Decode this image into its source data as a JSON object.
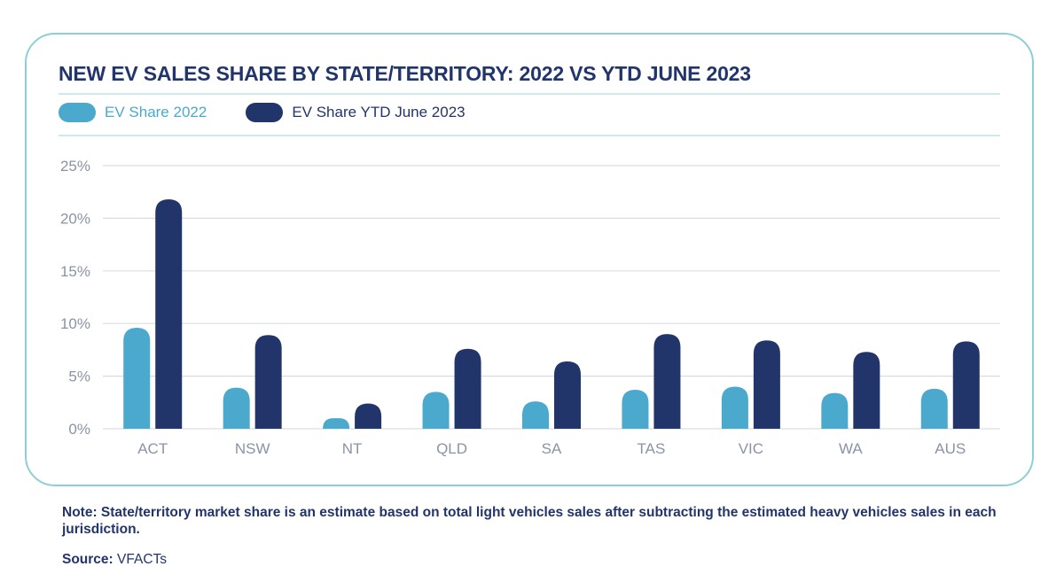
{
  "chart_data": {
    "type": "bar",
    "title": "NEW EV SALES SHARE BY STATE/TERRITORY: 2022 VS YTD JUNE 2023",
    "categories": [
      "ACT",
      "NSW",
      "NT",
      "QLD",
      "SA",
      "TAS",
      "VIC",
      "WA",
      "AUS"
    ],
    "series": [
      {
        "name": "EV Share 2022",
        "color": "#4aa9cc",
        "values": [
          9.6,
          3.9,
          1.0,
          3.5,
          2.6,
          3.7,
          4.0,
          3.4,
          3.8
        ]
      },
      {
        "name": "EV Share YTD June 2023",
        "color": "#22356b",
        "values": [
          21.8,
          8.9,
          2.4,
          7.6,
          6.4,
          9.0,
          8.4,
          7.3,
          8.3
        ]
      }
    ],
    "yticks": [
      "0%",
      "5%",
      "10%",
      "15%",
      "20%",
      "25%"
    ],
    "ylim": [
      0,
      25
    ],
    "y_unit": "%",
    "grid": true,
    "legend_position": "top-left"
  },
  "note": "Note: State/territory market share is an estimate based on total light vehicles sales after subtracting the estimated heavy vehicles sales in each jurisdiction.",
  "source": {
    "label": "Source:",
    "value": "VFACTs"
  },
  "colors": {
    "title": "#22356b",
    "axis_text": "#8a93a6",
    "grid": "#d9dde3",
    "rule": "#cbe9ee"
  }
}
